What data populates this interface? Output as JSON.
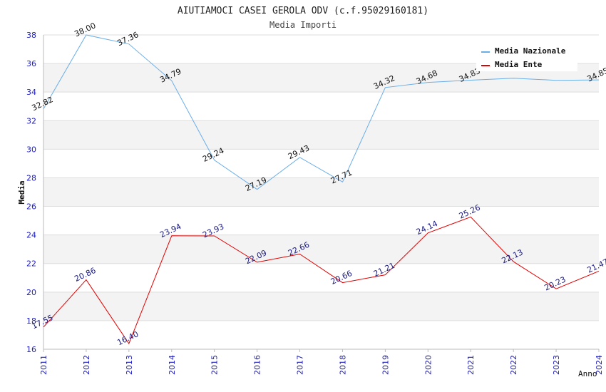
{
  "chart_data": {
    "type": "line",
    "title": "AIUTIAMOCI CASEI GEROLA ODV (c.f.95029160181)",
    "subtitle": "Media Importi",
    "xlabel": "Anno",
    "ylabel": "Media",
    "x": [
      "2011",
      "2012",
      "2013",
      "2014",
      "2015",
      "2016",
      "2017",
      "2018",
      "2019",
      "2020",
      "2021",
      "2022",
      "2023",
      "2024"
    ],
    "ylim": [
      16,
      38
    ],
    "yticks": [
      16,
      18,
      20,
      22,
      24,
      26,
      28,
      30,
      32,
      34,
      36,
      38
    ],
    "grid": true,
    "legend_position": "top-right",
    "series": [
      {
        "name": "Media Nazionale",
        "color": "#6aaee8",
        "values": [
          32.82,
          38.0,
          37.36,
          34.79,
          29.24,
          27.19,
          29.43,
          27.71,
          34.32,
          34.68,
          34.83,
          34.97,
          34.82,
          34.85
        ],
        "labels": [
          "32.82",
          "38.00",
          "37.36",
          "34.79",
          "29.24",
          "27.19",
          "29.43",
          "27.71",
          "34.32",
          "34.68",
          "34.83",
          "",
          "",
          "34.85"
        ]
      },
      {
        "name": "Media Ente",
        "color": "#e00000",
        "values": [
          17.55,
          20.86,
          16.4,
          23.94,
          23.93,
          22.09,
          22.66,
          20.66,
          21.21,
          24.14,
          25.26,
          22.13,
          20.23,
          21.47
        ],
        "labels": [
          "17.55",
          "20.86",
          "16.40",
          "23.94",
          "23.93",
          "22.09",
          "22.66",
          "20.66",
          "21.21",
          "24.14",
          "25.26",
          "22.13",
          "20.23",
          "21.47"
        ]
      }
    ]
  }
}
